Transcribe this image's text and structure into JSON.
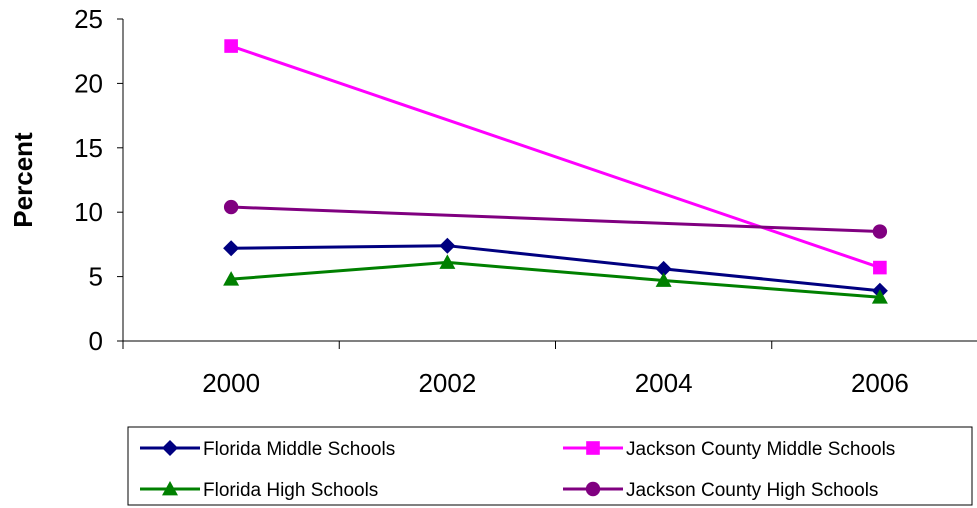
{
  "chart_data": {
    "type": "line",
    "title": "",
    "xlabel": "",
    "ylabel": "Percent",
    "categories": [
      "2000",
      "2002",
      "2004",
      "2006"
    ],
    "ylim": [
      0,
      25
    ],
    "yticks": [
      0,
      5,
      10,
      15,
      20,
      25
    ],
    "grid": false,
    "legend_position": "bottom",
    "series": [
      {
        "name": "Florida Middle Schools",
        "values": [
          7.2,
          7.4,
          5.6,
          3.9
        ],
        "color": "#000080",
        "marker": "diamond"
      },
      {
        "name": "Jackson County Middle Schools",
        "values": [
          22.9,
          null,
          null,
          5.7
        ],
        "color": "#FF00FF",
        "marker": "square"
      },
      {
        "name": "Florida High Schools",
        "values": [
          4.8,
          6.1,
          4.7,
          3.4
        ],
        "color": "#008000",
        "marker": "triangle"
      },
      {
        "name": "Jackson County High Schools",
        "values": [
          10.4,
          null,
          null,
          8.5
        ],
        "color": "#800080",
        "marker": "circle"
      }
    ]
  }
}
